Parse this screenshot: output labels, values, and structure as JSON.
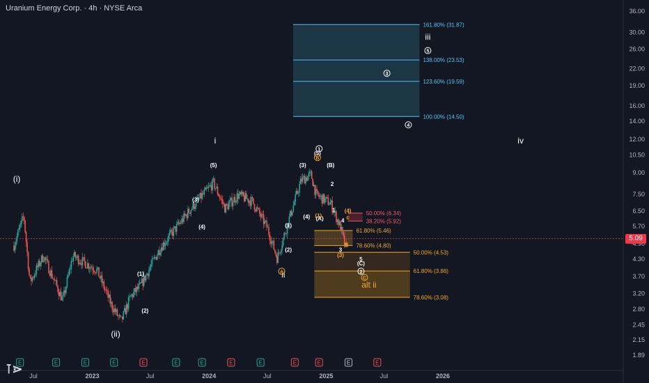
{
  "header": {
    "title": "Uranium Energy Corp. · 4h · NYSE Arca"
  },
  "colors": {
    "background": "#131722",
    "axis_text": "#b2b5be",
    "fib_cyan": "#4fc3f7",
    "fib_orange": "#f5a623",
    "fib_red": "#f7525f",
    "price_line": "#f23645",
    "candle_up": "#26a69a",
    "candle_down": "#ef5350",
    "white_label": "#ffffff"
  },
  "current_price": {
    "label": "5.09",
    "value": 5.09
  },
  "chart_data": {
    "type": "candlestick",
    "x_axis": {
      "tick_labels": [
        "Jul",
        "2023",
        "Jul",
        "2024",
        "Jul",
        "2025",
        "Jul",
        "2026"
      ]
    },
    "y_axis": {
      "scale": "log",
      "ylim": [
        1.8,
        37.5
      ],
      "tick_labels": [
        "36.00",
        "30.00",
        "26.00",
        "22.00",
        "19.00",
        "16.00",
        "14.00",
        "12.00",
        "10.50",
        "9.00",
        "7.50",
        "6.50",
        "5.70",
        "4.90",
        "4.30",
        "3.70",
        "3.20",
        "2.80",
        "2.45",
        "2.15",
        "1.89"
      ]
    },
    "price_path": [
      {
        "date": "2022-05-01",
        "price": 4.8
      },
      {
        "date": "2022-06-01",
        "price": 6.2
      },
      {
        "date": "2022-06-20",
        "price": 3.5
      },
      {
        "date": "2022-08-01",
        "price": 4.4
      },
      {
        "date": "2022-10-01",
        "price": 3.0
      },
      {
        "date": "2022-11-01",
        "price": 4.4
      },
      {
        "date": "2023-01-15",
        "price": 3.9
      },
      {
        "date": "2023-03-01",
        "price": 2.9
      },
      {
        "date": "2023-04-01",
        "price": 2.5
      },
      {
        "date": "2023-05-01",
        "price": 3.1
      },
      {
        "date": "2023-06-01",
        "price": 3.4
      },
      {
        "date": "2023-08-01",
        "price": 4.7
      },
      {
        "date": "2023-10-01",
        "price": 5.8
      },
      {
        "date": "2023-11-15",
        "price": 6.8
      },
      {
        "date": "2024-01-15",
        "price": 8.2
      },
      {
        "date": "2024-02-20",
        "price": 6.6
      },
      {
        "date": "2024-04-01",
        "price": 7.4
      },
      {
        "date": "2024-05-15",
        "price": 7.0
      },
      {
        "date": "2024-07-01",
        "price": 5.6
      },
      {
        "date": "2024-08-01",
        "price": 4.3
      },
      {
        "date": "2024-09-01",
        "price": 5.7
      },
      {
        "date": "2024-10-15",
        "price": 8.4
      },
      {
        "date": "2024-11-15",
        "price": 8.8
      },
      {
        "date": "2024-12-01",
        "price": 7.4
      },
      {
        "date": "2025-01-15",
        "price": 6.9
      },
      {
        "date": "2025-02-15",
        "price": 5.6
      },
      {
        "date": "2025-03-05",
        "price": 4.6
      },
      {
        "date": "2025-03-10",
        "price": 5.09
      }
    ],
    "fib_zones": [
      {
        "label": "161.80% (31.87)",
        "value": 31.87,
        "color": "cyan"
      },
      {
        "label": "138.00% (23.53)",
        "value": 23.53,
        "color": "cyan"
      },
      {
        "label": "123.60% (19.59)",
        "value": 19.59,
        "color": "cyan"
      },
      {
        "label": "100.00% (14.50)",
        "value": 14.5,
        "color": "cyan"
      },
      {
        "label": "50.00% (6.34)",
        "value": 6.34,
        "color": "red"
      },
      {
        "label": "38.20% (5.92)",
        "value": 5.92,
        "color": "red"
      },
      {
        "label": "61.80% (5.46)",
        "value": 5.46,
        "color": "orange"
      },
      {
        "label": "78.60% (4.80)",
        "value": 4.8,
        "color": "orange"
      },
      {
        "label": "50.00% (4.53)",
        "value": 4.53,
        "color": "orange"
      },
      {
        "label": "61.80% (3.86)",
        "value": 3.86,
        "color": "orange"
      },
      {
        "label": "78.60% (3.08)",
        "value": 3.08,
        "color": "orange"
      }
    ],
    "wave_labels": [
      {
        "text": "(i)",
        "date": "2022-05-10",
        "price": 8.3,
        "color": "white",
        "size": "big"
      },
      {
        "text": "(ii)",
        "date": "2023-03-15",
        "price": 2.2,
        "color": "white",
        "size": "big"
      },
      {
        "text": "i",
        "date": "2024-01-20",
        "price": 11.5,
        "color": "white",
        "size": "big"
      },
      {
        "text": "ii",
        "date": "2024-08-20",
        "price": 3.65,
        "color": "white",
        "size": "big"
      },
      {
        "text": "iii",
        "date": "2025-11-15",
        "price": 28.0,
        "color": "white",
        "size": "big"
      },
      {
        "text": "iv",
        "date": "2026-09-01",
        "price": 11.5,
        "color": "white",
        "size": "big"
      },
      {
        "text": "(1)",
        "date": "2023-06-01",
        "price": 3.7,
        "color": "white",
        "size": "small"
      },
      {
        "text": "(2)",
        "date": "2023-06-15",
        "price": 2.7,
        "color": "white",
        "size": "small"
      },
      {
        "text": "(3)",
        "date": "2023-11-20",
        "price": 7.0,
        "color": "white",
        "size": "small"
      },
      {
        "text": "(4)",
        "date": "2023-12-10",
        "price": 5.55,
        "color": "white",
        "size": "small"
      },
      {
        "text": "(5)",
        "date": "2024-01-15",
        "price": 9.4,
        "color": "white",
        "size": "small"
      },
      {
        "text": "(1)",
        "date": "2024-09-05",
        "price": 5.6,
        "color": "white",
        "size": "small"
      },
      {
        "text": "(2)",
        "date": "2024-09-05",
        "price": 4.55,
        "color": "white",
        "size": "small"
      },
      {
        "text": "(3)",
        "date": "2024-10-20",
        "price": 9.4,
        "color": "white",
        "size": "small"
      },
      {
        "text": "(4)",
        "date": "2024-11-01",
        "price": 6.05,
        "color": "white",
        "size": "small"
      },
      {
        "text": "(5)",
        "date": "2024-12-05",
        "price": 10.4,
        "color": "white",
        "size": "small"
      },
      {
        "text": "(A)",
        "date": "2024-12-12",
        "price": 5.95,
        "color": "white",
        "size": "small"
      },
      {
        "text": "(B)",
        "date": "2025-01-15",
        "price": 9.4,
        "color": "white",
        "size": "small"
      },
      {
        "text": "2",
        "date": "2025-01-20",
        "price": 8.0,
        "color": "white",
        "size": "small"
      },
      {
        "text": "1",
        "date": "2025-01-25",
        "price": 6.4,
        "color": "white",
        "size": "small"
      },
      {
        "text": "4",
        "date": "2025-02-22",
        "price": 5.85,
        "color": "white",
        "size": "small"
      },
      {
        "text": "3",
        "date": "2025-02-15",
        "price": 4.55,
        "color": "white",
        "size": "small"
      },
      {
        "text": "5",
        "date": "2025-04-20",
        "price": 4.2,
        "color": "white",
        "size": "small"
      },
      {
        "text": "(C)",
        "date": "2025-04-20",
        "price": 4.05,
        "color": "white",
        "size": "small"
      },
      {
        "text": "(1)",
        "date": "2024-12-08",
        "price": 6.1,
        "color": "orange",
        "size": "small"
      },
      {
        "text": "(4)",
        "date": "2025-03-10",
        "price": 6.35,
        "color": "orange",
        "size": "small"
      },
      {
        "text": "c",
        "date": "2025-03-10",
        "price": 6.0,
        "color": "orange",
        "size": "small"
      },
      {
        "text": "B",
        "date": "2025-03-05",
        "price": 4.75,
        "color": "orange",
        "size": "small"
      },
      {
        "text": "(3)",
        "date": "2025-02-15",
        "price": 4.35,
        "color": "orange",
        "size": "small"
      },
      {
        "text": "alt ii",
        "date": "2025-05-15",
        "price": 3.35,
        "color": "orange",
        "size": "big"
      }
    ],
    "circled_labels": [
      {
        "text": "1",
        "date": "2024-12-10",
        "price": 11.0,
        "color": "white"
      },
      {
        "text": "3",
        "date": "2025-07-10",
        "price": 21.0,
        "color": "white"
      },
      {
        "text": "4",
        "date": "2025-09-15",
        "price": 13.5,
        "color": "white"
      },
      {
        "text": "5",
        "date": "2025-11-15",
        "price": 25.5,
        "color": "white"
      },
      {
        "text": "2",
        "date": "2025-04-20",
        "price": 3.85,
        "color": "white"
      },
      {
        "text": "A",
        "date": "2024-08-15",
        "price": 3.85,
        "color": "orange"
      },
      {
        "text": "B",
        "date": "2024-12-05",
        "price": 10.2,
        "color": "orange"
      },
      {
        "text": "C",
        "date": "2025-05-01",
        "price": 3.65,
        "color": "orange"
      }
    ],
    "events": [
      {
        "text": "E",
        "date": "2022-05-20",
        "type": "earnings-green"
      },
      {
        "text": "E",
        "date": "2022-09-10",
        "type": "earnings-green"
      },
      {
        "text": "E",
        "date": "2022-12-10",
        "type": "earnings-green"
      },
      {
        "text": "E",
        "date": "2023-03-10",
        "type": "earnings-green"
      },
      {
        "text": "E",
        "date": "2023-06-10",
        "type": "earnings-red"
      },
      {
        "text": "E",
        "date": "2023-09-20",
        "type": "earnings-green"
      },
      {
        "text": "E",
        "date": "2023-12-10",
        "type": "earnings-green"
      },
      {
        "text": "E",
        "date": "2024-03-10",
        "type": "earnings-red"
      },
      {
        "text": "E",
        "date": "2024-06-10",
        "type": "earnings-green"
      },
      {
        "text": "E",
        "date": "2024-09-25",
        "type": "earnings-red"
      },
      {
        "text": "E",
        "date": "2024-12-10",
        "type": "earnings-red"
      },
      {
        "text": "E",
        "date": "2025-03-12",
        "type": "earnings-upcoming"
      },
      {
        "text": "E",
        "date": "2025-06-10",
        "type": "earnings-red"
      }
    ]
  }
}
